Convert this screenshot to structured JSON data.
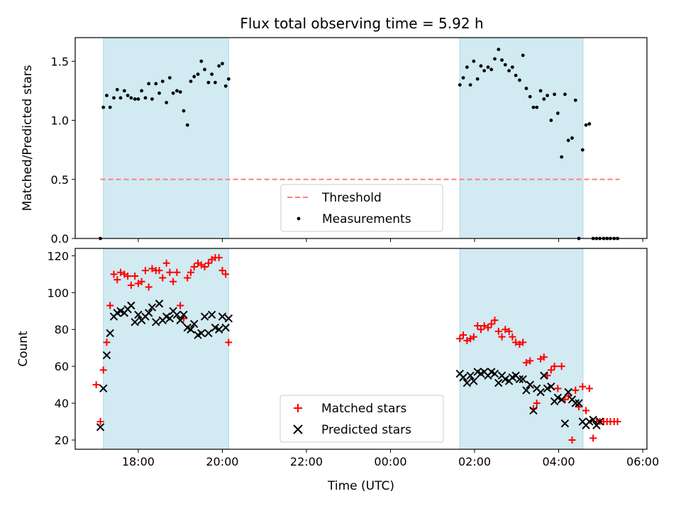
{
  "figure": {
    "title": "Flux total observing time = 5.92 h",
    "xlabel": "Time (UTC)"
  },
  "colors": {
    "shade": "#add8e6",
    "threshold": "#ff7f7f",
    "matched": "#ff0000",
    "predicted": "#000000",
    "measurement": "#000000"
  },
  "chart_data": [
    {
      "type": "scatter",
      "ylabel": "Matched/Predicted stars",
      "ylim": [
        0,
        1.7
      ],
      "yticks": [
        0.0,
        0.5,
        1.0,
        1.5
      ],
      "ytick_labels": [
        "0.0",
        "0.5",
        "1.0",
        "1.5"
      ],
      "xlim_hours": [
        16.5,
        30.1
      ],
      "shaded_spans_hours": [
        [
          17.17,
          20.15
        ],
        [
          25.65,
          28.58
        ]
      ],
      "threshold": {
        "name": "Threshold",
        "value": 0.5,
        "x_range_hours": [
          17.1,
          29.45
        ]
      },
      "legend": {
        "loc": "lower center",
        "entries": [
          "Threshold",
          "Measurements"
        ]
      },
      "series": [
        {
          "name": "Measurements",
          "x": [
            17.1,
            17.17,
            17.25,
            17.33,
            17.42,
            17.5,
            17.58,
            17.67,
            17.75,
            17.83,
            17.92,
            18.0,
            18.08,
            18.17,
            18.25,
            18.33,
            18.42,
            18.5,
            18.58,
            18.67,
            18.75,
            18.83,
            18.92,
            19.0,
            19.08,
            19.17,
            19.25,
            19.33,
            19.42,
            19.5,
            19.58,
            19.67,
            19.75,
            19.83,
            19.92,
            20.0,
            20.08,
            20.15,
            25.65,
            25.73,
            25.82,
            25.9,
            25.98,
            26.07,
            26.15,
            26.23,
            26.32,
            26.4,
            26.48,
            26.57,
            26.65,
            26.73,
            26.82,
            26.9,
            26.98,
            27.07,
            27.15,
            27.23,
            27.32,
            27.4,
            27.48,
            27.57,
            27.65,
            27.73,
            27.82,
            27.9,
            27.98,
            28.07,
            28.15,
            28.23,
            28.32,
            28.4,
            28.48,
            28.57,
            28.65,
            28.73,
            28.82,
            28.9,
            28.98,
            29.07,
            29.15,
            29.23,
            29.32,
            29.4
          ],
          "y": [
            0.0,
            1.11,
            1.21,
            1.11,
            1.19,
            1.26,
            1.19,
            1.25,
            1.21,
            1.19,
            1.18,
            1.18,
            1.25,
            1.19,
            1.31,
            1.18,
            1.31,
            1.23,
            1.33,
            1.15,
            1.36,
            1.23,
            1.25,
            1.24,
            1.08,
            0.96,
            1.33,
            1.37,
            1.39,
            1.5,
            1.43,
            1.32,
            1.39,
            1.32,
            1.46,
            1.48,
            1.29,
            1.35,
            1.3,
            1.36,
            1.45,
            1.3,
            1.5,
            1.35,
            1.46,
            1.42,
            1.45,
            1.43,
            1.52,
            1.6,
            1.51,
            1.47,
            1.42,
            1.45,
            1.38,
            1.34,
            1.55,
            1.27,
            1.2,
            1.11,
            1.11,
            1.25,
            1.18,
            1.21,
            1.0,
            1.22,
            1.06,
            0.69,
            1.22,
            0.83,
            0.85,
            1.17,
            0.0,
            0.75,
            0.96,
            0.97,
            0.0,
            0.0,
            0.0,
            0.0,
            0.0,
            0.0,
            0.0,
            0.0
          ]
        }
      ]
    },
    {
      "type": "scatter",
      "ylabel": "Count",
      "ylim": [
        15,
        124
      ],
      "yticks": [
        20,
        40,
        60,
        80,
        100,
        120
      ],
      "ytick_labels": [
        "20",
        "40",
        "60",
        "80",
        "100",
        "120"
      ],
      "xlim_hours": [
        16.5,
        30.1
      ],
      "xticks_hours": [
        18,
        20,
        22,
        24,
        26,
        28,
        30
      ],
      "xtick_labels": [
        "18:00",
        "20:00",
        "22:00",
        "00:00",
        "02:00",
        "04:00",
        "06:00"
      ],
      "shaded_spans_hours": [
        [
          17.17,
          20.15
        ],
        [
          25.65,
          28.58
        ]
      ],
      "legend": {
        "loc": "lower center",
        "entries": [
          "Matched stars",
          "Predicted stars"
        ]
      },
      "series": [
        {
          "name": "Matched stars",
          "marker": "+",
          "x": [
            17.0,
            17.1,
            17.17,
            17.25,
            17.33,
            17.42,
            17.5,
            17.58,
            17.67,
            17.75,
            17.83,
            17.92,
            18.0,
            18.08,
            18.17,
            18.25,
            18.33,
            18.42,
            18.5,
            18.58,
            18.67,
            18.75,
            18.83,
            18.92,
            19.0,
            19.08,
            19.17,
            19.25,
            19.33,
            19.42,
            19.5,
            19.58,
            19.67,
            19.75,
            19.83,
            19.92,
            20.0,
            20.08,
            20.15,
            25.65,
            25.73,
            25.82,
            25.9,
            25.98,
            26.07,
            26.15,
            26.23,
            26.32,
            26.4,
            26.48,
            26.57,
            26.65,
            26.73,
            26.82,
            26.9,
            26.98,
            27.07,
            27.15,
            27.23,
            27.32,
            27.4,
            27.48,
            27.57,
            27.65,
            27.73,
            27.82,
            27.9,
            27.98,
            28.07,
            28.15,
            28.23,
            28.32,
            28.4,
            28.48,
            28.57,
            28.65,
            28.73,
            28.82,
            28.9,
            28.98,
            29.07,
            29.15,
            29.23,
            29.32,
            29.4
          ],
          "y": [
            50,
            30,
            58,
            73,
            93,
            110,
            107,
            111,
            110,
            109,
            104,
            109,
            105,
            106,
            112,
            103,
            113,
            112,
            112,
            108,
            116,
            111,
            106,
            111,
            93,
            86,
            108,
            111,
            114,
            116,
            115,
            114,
            116,
            118,
            119,
            119,
            112,
            110,
            73,
            75,
            77,
            74,
            75,
            76,
            82,
            80,
            82,
            81,
            83,
            85,
            79,
            76,
            80,
            79,
            76,
            73,
            72,
            73,
            62,
            63,
            37,
            40,
            64,
            65,
            55,
            58,
            60,
            48,
            60,
            42,
            44,
            20,
            47,
            38,
            49,
            36,
            48,
            21,
            30,
            30,
            30,
            30,
            30,
            30,
            30
          ]
        },
        {
          "name": "Predicted stars",
          "marker": "x",
          "x": [
            17.1,
            17.17,
            17.25,
            17.33,
            17.42,
            17.5,
            17.58,
            17.67,
            17.75,
            17.83,
            17.92,
            18.0,
            18.08,
            18.17,
            18.25,
            18.33,
            18.42,
            18.5,
            18.58,
            18.67,
            18.75,
            18.83,
            18.92,
            19.0,
            19.08,
            19.17,
            19.25,
            19.33,
            19.42,
            19.5,
            19.58,
            19.67,
            19.75,
            19.83,
            19.92,
            20.0,
            20.08,
            20.15,
            25.65,
            25.73,
            25.82,
            25.9,
            25.98,
            26.07,
            26.15,
            26.23,
            26.32,
            26.4,
            26.48,
            26.57,
            26.65,
            26.73,
            26.82,
            26.9,
            26.98,
            27.07,
            27.15,
            27.23,
            27.32,
            27.4,
            27.48,
            27.57,
            27.65,
            27.73,
            27.82,
            27.9,
            27.98,
            28.07,
            28.15,
            28.23,
            28.32,
            28.4,
            28.48,
            28.57,
            28.65,
            28.73,
            28.82,
            28.9,
            28.98
          ],
          "y": [
            27,
            48,
            66,
            78,
            87,
            89,
            90,
            89,
            91,
            93,
            84,
            88,
            85,
            87,
            89,
            92,
            84,
            94,
            85,
            87,
            86,
            90,
            88,
            85,
            88,
            81,
            80,
            83,
            77,
            78,
            87,
            78,
            88,
            81,
            80,
            87,
            81,
            86,
            56,
            54,
            51,
            55,
            52,
            57,
            56,
            57,
            55,
            57,
            56,
            51,
            55,
            53,
            52,
            54,
            55,
            53,
            53,
            47,
            50,
            36,
            48,
            46,
            55,
            48,
            49,
            41,
            43,
            42,
            29,
            46,
            42,
            40,
            40,
            30,
            28,
            30,
            31,
            28,
            30
          ]
        }
      ]
    }
  ]
}
